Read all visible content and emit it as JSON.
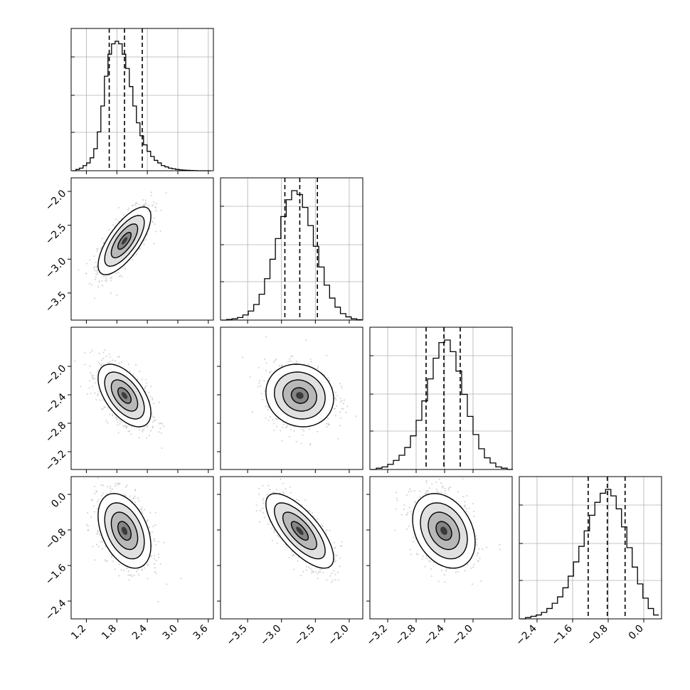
{
  "chart_data": {
    "type": "corner",
    "grid": true,
    "parameters": [
      {
        "range": [
          0.9,
          3.7
        ],
        "ticks": [
          1.2,
          1.8,
          2.4,
          3.0,
          3.6
        ],
        "tick_labels": [
          "1.2",
          "1.8",
          "2.4",
          "3.0",
          "3.6"
        ],
        "quantiles": [
          1.65,
          1.95,
          2.3
        ],
        "hist_x": [
          0.96,
          1.03,
          1.1,
          1.17,
          1.24,
          1.31,
          1.38,
          1.45,
          1.52,
          1.59,
          1.66,
          1.73,
          1.8,
          1.87,
          1.94,
          2.01,
          2.08,
          2.15,
          2.22,
          2.29,
          2.36,
          2.43,
          2.5,
          2.57,
          2.64,
          2.71,
          2.78,
          2.85,
          2.92,
          2.99,
          3.06,
          3.13,
          3.2,
          3.27,
          3.34,
          3.41,
          3.48,
          3.55,
          3.62
        ],
        "hist_y": [
          0.0,
          0.01,
          0.02,
          0.04,
          0.06,
          0.1,
          0.17,
          0.3,
          0.5,
          0.73,
          0.9,
          0.98,
          1.0,
          0.98,
          0.9,
          0.79,
          0.65,
          0.5,
          0.37,
          0.27,
          0.2,
          0.15,
          0.11,
          0.08,
          0.06,
          0.04,
          0.03,
          0.02,
          0.015,
          0.01,
          0.007,
          0.005,
          0.003,
          0.002,
          0.001,
          0.0,
          0.0,
          0.0,
          0.0
        ]
      },
      {
        "range": [
          -3.9,
          -1.8
        ],
        "ticks": [
          -3.5,
          -3.0,
          -2.5,
          -2.0
        ],
        "tick_labels": [
          "−3.5",
          "−3.0",
          "−2.5",
          "−2.0"
        ],
        "quantiles": [
          -2.95,
          -2.73,
          -2.47
        ],
        "hist_x": [
          -3.85,
          -3.77,
          -3.69,
          -3.61,
          -3.53,
          -3.45,
          -3.37,
          -3.29,
          -3.21,
          -3.13,
          -3.05,
          -2.97,
          -2.89,
          -2.81,
          -2.73,
          -2.65,
          -2.57,
          -2.49,
          -2.41,
          -2.33,
          -2.25,
          -2.17,
          -2.09,
          -2.01,
          -1.93,
          -1.85
        ],
        "hist_y": [
          0.0,
          0.005,
          0.01,
          0.02,
          0.04,
          0.07,
          0.12,
          0.2,
          0.32,
          0.47,
          0.63,
          0.8,
          0.93,
          1.0,
          0.97,
          0.87,
          0.73,
          0.57,
          0.41,
          0.27,
          0.17,
          0.1,
          0.05,
          0.025,
          0.01,
          0.003
        ]
      },
      {
        "range": [
          -3.45,
          -1.45
        ],
        "ticks": [
          -3.2,
          -2.8,
          -2.4,
          -2.0
        ],
        "tick_labels": [
          "−3.2",
          "−2.8",
          "−2.4",
          "−2.0"
        ],
        "quantiles": [
          -2.66,
          -2.41,
          -2.18
        ],
        "hist_x": [
          -3.4,
          -3.32,
          -3.24,
          -3.16,
          -3.08,
          -3.0,
          -2.92,
          -2.84,
          -2.76,
          -2.68,
          -2.6,
          -2.52,
          -2.44,
          -2.36,
          -2.28,
          -2.2,
          -2.12,
          -2.04,
          -1.96,
          -1.88,
          -1.8,
          -1.72,
          -1.64,
          -1.56,
          -1.48
        ],
        "hist_y": [
          0.0,
          0.01,
          0.02,
          0.04,
          0.07,
          0.11,
          0.17,
          0.26,
          0.38,
          0.53,
          0.7,
          0.86,
          0.98,
          1.0,
          0.91,
          0.76,
          0.58,
          0.41,
          0.27,
          0.16,
          0.09,
          0.05,
          0.02,
          0.01,
          0.0
        ]
      },
      {
        "range": [
          -2.8,
          0.4
        ],
        "ticks": [
          -2.4,
          -1.6,
          -0.8,
          0.0
        ],
        "tick_labels": [
          "−2.4",
          "−1.6",
          "−0.8",
          "0.0"
        ],
        "quantiles": [
          -1.25,
          -0.82,
          -0.42
        ],
        "hist_x": [
          -2.72,
          -2.6,
          -2.48,
          -2.36,
          -2.24,
          -2.12,
          -2.0,
          -1.88,
          -1.76,
          -1.64,
          -1.52,
          -1.4,
          -1.28,
          -1.16,
          -1.04,
          -0.92,
          -0.8,
          -0.68,
          -0.56,
          -0.44,
          -0.32,
          -0.2,
          -0.08,
          0.04,
          0.16,
          0.28
        ],
        "hist_y": [
          0.0,
          0.01,
          0.02,
          0.03,
          0.05,
          0.08,
          0.12,
          0.17,
          0.24,
          0.33,
          0.44,
          0.56,
          0.68,
          0.8,
          0.9,
          0.97,
          1.0,
          0.95,
          0.85,
          0.71,
          0.55,
          0.4,
          0.27,
          0.16,
          0.08,
          0.03
        ]
      }
    ],
    "pairs": [
      {
        "row": 1,
        "col": 0,
        "center": [
          1.95,
          -2.73
        ],
        "sd": [
          0.26,
          0.25
        ],
        "corr": 0.72
      },
      {
        "row": 2,
        "col": 0,
        "center": [
          1.95,
          -2.41
        ],
        "sd": [
          0.26,
          0.22
        ],
        "corr": -0.55
      },
      {
        "row": 2,
        "col": 1,
        "center": [
          -2.73,
          -2.41
        ],
        "sd": [
          0.25,
          0.22
        ],
        "corr": -0.1
      },
      {
        "row": 3,
        "col": 0,
        "center": [
          1.95,
          -0.82
        ],
        "sd": [
          0.26,
          0.42
        ],
        "corr": -0.4
      },
      {
        "row": 3,
        "col": 1,
        "center": [
          -2.73,
          -0.82
        ],
        "sd": [
          0.25,
          0.42
        ],
        "corr": -0.72
      },
      {
        "row": 3,
        "col": 2,
        "center": [
          -2.41,
          -0.82
        ],
        "sd": [
          0.22,
          0.42
        ],
        "corr": -0.3
      }
    ],
    "contour_levels_sigma": [
      0.5,
      1.0,
      1.5,
      2.0
    ],
    "colors": {
      "line": "#000000",
      "grid": "#b0b0b0",
      "points": "#bdbdbd"
    }
  }
}
